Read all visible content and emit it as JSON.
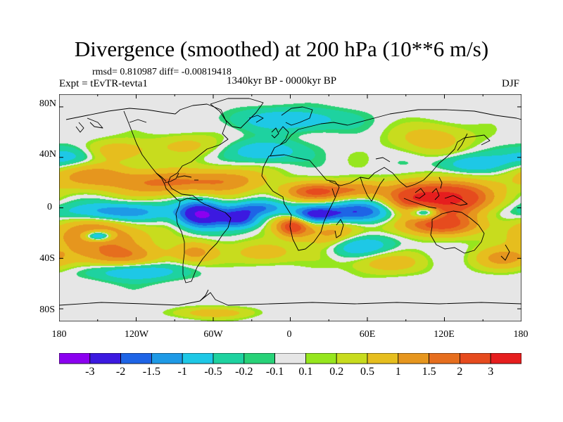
{
  "title": "Divergence (smoothed) at 200 hPa (10**6 m/s)",
  "stats": "rmsd= 0.810987 diff= -0.00819418",
  "experiment": "Expt = tEvTR-tevta1",
  "period": "1340kyr BP - 0000kyr BP",
  "season": "DJF",
  "map_data": {
    "lon_range": [
      -180,
      180
    ],
    "lat_range": [
      -90,
      90
    ],
    "lat_labels": [
      "80N",
      "40N",
      "0",
      "40S",
      "80S"
    ],
    "lon_labels": [
      "180",
      "120W",
      "60W",
      "0",
      "60E",
      "120E",
      "180"
    ],
    "anomalies": [
      {
        "name": "w-pacific-div",
        "lon": 125,
        "lat": 8,
        "ax": 20,
        "ay": 9,
        "v": 3.3
      },
      {
        "name": "maritime-div",
        "lon": 95,
        "lat": 8,
        "ax": 16,
        "ay": 8,
        "v": 1.8
      },
      {
        "name": "indonesia-south-div",
        "lon": 115,
        "lat": -13,
        "ax": 24,
        "ay": 6,
        "v": 2.1
      },
      {
        "name": "e-africa-div",
        "lon": 30,
        "lat": -20,
        "ax": 14,
        "ay": 10,
        "v": 1.3
      },
      {
        "name": "s-atlantic-div",
        "lon": 2,
        "lat": -14,
        "ax": 9,
        "ay": 6,
        "v": 2.6
      },
      {
        "name": "n-africa-div",
        "lon": 20,
        "lat": 13,
        "ax": 18,
        "ay": 5,
        "v": 2.0
      },
      {
        "name": "arabia-div",
        "lon": 55,
        "lat": 15,
        "ax": 14,
        "ay": 5,
        "v": 1.3
      },
      {
        "name": "caribbean-div",
        "lon": -95,
        "lat": 20,
        "ax": 25,
        "ay": 7,
        "v": 1.6
      },
      {
        "name": "n-atlantic-div",
        "lon": -45,
        "lat": 22,
        "ax": 22,
        "ay": 7,
        "v": 1.1
      },
      {
        "name": "c-pacific-div",
        "lon": -155,
        "lat": 25,
        "ax": 22,
        "ay": 8,
        "v": 1.4
      },
      {
        "name": "s-pacific-ring-div",
        "lon": -150,
        "lat": -22,
        "ax": 26,
        "ay": 9,
        "v": 1.7
      },
      {
        "name": "s-pacific-south-div",
        "lon": -135,
        "lat": -38,
        "ax": 24,
        "ay": 6,
        "v": 1.3
      },
      {
        "name": "s-atlantic-mid-div",
        "lon": -20,
        "lat": -35,
        "ax": 16,
        "ay": 6,
        "v": 0.9
      },
      {
        "name": "s-america-south-div",
        "lon": -75,
        "lat": -35,
        "ax": 12,
        "ay": 6,
        "v": 1.2
      },
      {
        "name": "n-pacific-east-div",
        "lon": -135,
        "lat": 45,
        "ax": 18,
        "ay": 6,
        "v": 0.9
      },
      {
        "name": "asia-high-div",
        "lon": 110,
        "lat": 55,
        "ax": 20,
        "ay": 8,
        "v": 0.8
      },
      {
        "name": "n-america-div",
        "lon": -80,
        "lat": 50,
        "ax": 18,
        "ay": 6,
        "v": 0.6
      },
      {
        "name": "s-indian-div",
        "lon": 75,
        "lat": -43,
        "ax": 20,
        "ay": 6,
        "v": 0.8
      },
      {
        "name": "s-pacific-east-div",
        "lon": 165,
        "lat": -40,
        "ax": 15,
        "ay": 6,
        "v": 1.1
      },
      {
        "name": "amazon-conv",
        "lon": -70,
        "lat": -5,
        "ax": 12,
        "ay": 7,
        "v": -3.1
      },
      {
        "name": "e-brazil-conv",
        "lon": -40,
        "lat": -8,
        "ax": 11,
        "ay": 5,
        "v": -2.2
      },
      {
        "name": "africa-conv",
        "lon": 20,
        "lat": -5,
        "ax": 15,
        "ay": 5,
        "v": -2.6
      },
      {
        "name": "indian-eq-conv",
        "lon": 55,
        "lat": -3,
        "ax": 16,
        "ay": 6,
        "v": -2.0
      },
      {
        "name": "borneo-conv",
        "lon": 105,
        "lat": -3,
        "ax": 8,
        "ay": 4,
        "v": -2.2
      },
      {
        "name": "pacific-eq-conv",
        "lon": -135,
        "lat": -3,
        "ax": 30,
        "ay": 5,
        "v": -1.4
      },
      {
        "name": "atlantic-eq-conv",
        "lon": -25,
        "lat": 0,
        "ax": 14,
        "ay": 4,
        "v": -1.5
      },
      {
        "name": "pacific-ring-center",
        "lon": -150,
        "lat": -22,
        "ax": 8,
        "ay": 3,
        "v": -2.6
      },
      {
        "name": "n-pacific-conv",
        "lon": -170,
        "lat": 40,
        "ax": 18,
        "ay": 6,
        "v": -0.9
      },
      {
        "name": "n-atlantic-conv",
        "lon": -20,
        "lat": 45,
        "ax": 18,
        "ay": 6,
        "v": -1.0
      },
      {
        "name": "s-indian-conv",
        "lon": 50,
        "lat": -30,
        "ax": 20,
        "ay": 6,
        "v": -1.1
      },
      {
        "name": "s-pacific-conv",
        "lon": -120,
        "lat": -50,
        "ax": 25,
        "ay": 5,
        "v": -1.0
      },
      {
        "name": "arctic-conv",
        "lon": 0,
        "lat": 70,
        "ax": 30,
        "ay": 6,
        "v": -0.9
      },
      {
        "name": "antarctic-div",
        "lon": -60,
        "lat": -83,
        "ax": 20,
        "ay": 3,
        "v": 0.8
      },
      {
        "name": "asia-north-conv",
        "lon": 140,
        "lat": 35,
        "ax": 18,
        "ay": 5,
        "v": -0.9
      }
    ]
  },
  "colorbar": {
    "colors": [
      "#8b00f0",
      "#3c19e0",
      "#1e64e6",
      "#1e9ae6",
      "#1ec8e6",
      "#1ed2a0",
      "#28d278",
      "#e6e6e6",
      "#96e61e",
      "#c8dc1e",
      "#e6be1e",
      "#e6961e",
      "#e66e1e",
      "#e64b1e",
      "#e61e1e"
    ],
    "labels": [
      "-3",
      "-2",
      "-1.5",
      "-1",
      "-0.5",
      "-0.2",
      "-0.1",
      "0.1",
      "0.2",
      "0.5",
      "1",
      "1.5",
      "2",
      "3"
    ],
    "levels": [
      -3,
      -2,
      -1.5,
      -1,
      -0.5,
      -0.2,
      -0.1,
      0.1,
      0.2,
      0.5,
      1,
      1.5,
      2,
      3
    ]
  }
}
